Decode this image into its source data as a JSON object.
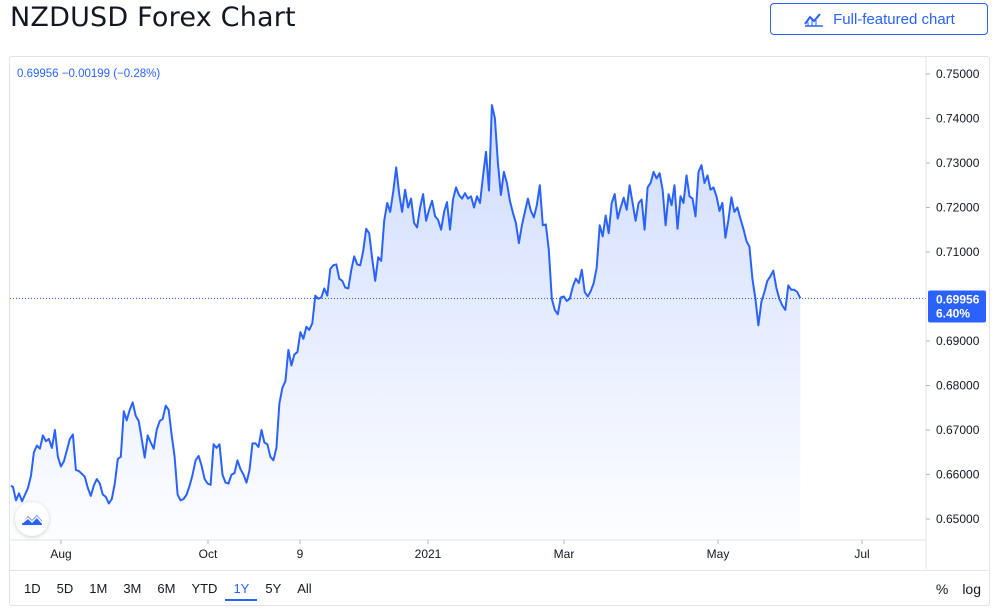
{
  "header": {
    "title": "NZDUSD Forex Chart",
    "full_featured_label": "Full-featured chart"
  },
  "legend": {
    "text": "0.69956  −0.00199 (−0.28%)"
  },
  "price_label": {
    "value": "0.69956",
    "change": "6.40%"
  },
  "toolbar": {
    "ranges": [
      "1D",
      "5D",
      "1M",
      "3M",
      "6M",
      "YTD",
      "1Y",
      "5Y",
      "All"
    ],
    "active_range": "1Y",
    "percent_label": "%",
    "log_label": "log"
  },
  "colors": {
    "line": "#2962ff",
    "accent": "#2962ff",
    "label_bg": "#2962ff"
  },
  "chart_data": {
    "type": "area",
    "series": [
      {
        "name": "NZDUSD",
        "points": [
          [
            1,
            0.6575
          ],
          [
            3,
            0.6572
          ],
          [
            6,
            0.6542
          ],
          [
            9,
            0.6558
          ],
          [
            12,
            0.654
          ],
          [
            15,
            0.6555
          ],
          [
            18,
            0.657
          ],
          [
            21,
            0.6598
          ],
          [
            24,
            0.665
          ],
          [
            27,
            0.6665
          ],
          [
            30,
            0.6658
          ],
          [
            33,
            0.6688
          ],
          [
            36,
            0.6675
          ],
          [
            39,
            0.668
          ],
          [
            42,
            0.666
          ],
          [
            45,
            0.67
          ],
          [
            48,
            0.664
          ],
          [
            51,
            0.6618
          ],
          [
            54,
            0.663
          ],
          [
            57,
            0.6655
          ],
          [
            60,
            0.668
          ],
          [
            63,
            0.669
          ],
          [
            66,
            0.661
          ],
          [
            69,
            0.6608
          ],
          [
            72,
            0.6602
          ],
          [
            75,
            0.6595
          ],
          [
            78,
            0.657
          ],
          [
            81,
            0.6552
          ],
          [
            84,
            0.6575
          ],
          [
            87,
            0.659
          ],
          [
            90,
            0.658
          ],
          [
            93,
            0.6555
          ],
          [
            96,
            0.655
          ],
          [
            99,
            0.6535
          ],
          [
            102,
            0.6545
          ],
          [
            105,
            0.658
          ],
          [
            108,
            0.6635
          ],
          [
            111,
            0.664
          ],
          [
            114,
            0.6742
          ],
          [
            117,
            0.6722
          ],
          [
            120,
            0.6745
          ],
          [
            123,
            0.6762
          ],
          [
            126,
            0.6732
          ],
          [
            129,
            0.672
          ],
          [
            132,
            0.668
          ],
          [
            135,
            0.6638
          ],
          [
            138,
            0.6688
          ],
          [
            141,
            0.6672
          ],
          [
            144,
            0.6658
          ],
          [
            147,
            0.67
          ],
          [
            150,
            0.672
          ],
          [
            153,
            0.6725
          ],
          [
            156,
            0.6755
          ],
          [
            159,
            0.6745
          ],
          [
            162,
            0.669
          ],
          [
            165,
            0.664
          ],
          [
            168,
            0.6555
          ],
          [
            171,
            0.6542
          ],
          [
            174,
            0.6545
          ],
          [
            177,
            0.6555
          ],
          [
            180,
            0.6575
          ],
          [
            183,
            0.66
          ],
          [
            186,
            0.6632
          ],
          [
            189,
            0.6642
          ],
          [
            192,
            0.662
          ],
          [
            195,
            0.659
          ],
          [
            198,
            0.658
          ],
          [
            201,
            0.6577
          ],
          [
            204,
            0.6668
          ],
          [
            207,
            0.666
          ],
          [
            210,
            0.6668
          ],
          [
            213,
            0.66
          ],
          [
            216,
            0.6582
          ],
          [
            219,
            0.658
          ],
          [
            222,
            0.66
          ],
          [
            225,
            0.6603
          ],
          [
            228,
            0.6632
          ],
          [
            231,
            0.6612
          ],
          [
            234,
            0.66
          ],
          [
            237,
            0.6582
          ],
          [
            240,
            0.661
          ],
          [
            243,
            0.667
          ],
          [
            246,
            0.667
          ],
          [
            249,
            0.6662
          ],
          [
            252,
            0.67
          ],
          [
            255,
            0.6672
          ],
          [
            258,
            0.6668
          ],
          [
            261,
            0.664
          ],
          [
            264,
            0.6632
          ],
          [
            267,
            0.666
          ],
          [
            270,
            0.676
          ],
          [
            273,
            0.6795
          ],
          [
            276,
            0.681
          ],
          [
            279,
            0.688
          ],
          [
            282,
            0.6845
          ],
          [
            285,
            0.687
          ],
          [
            288,
            0.6875
          ],
          [
            291,
            0.692
          ],
          [
            294,
            0.6905
          ],
          [
            297,
            0.6932
          ],
          [
            300,
            0.6925
          ],
          [
            303,
            0.694
          ],
          [
            306,
            0.7002
          ],
          [
            309,
            0.6995
          ],
          [
            312,
            0.6998
          ],
          [
            315,
            0.7018
          ],
          [
            318,
            0.7002
          ],
          [
            321,
            0.7062
          ],
          [
            324,
            0.707
          ],
          [
            327,
            0.7072
          ],
          [
            330,
            0.704
          ],
          [
            333,
            0.7035
          ],
          [
            336,
            0.702
          ],
          [
            339,
            0.7018
          ],
          [
            342,
            0.706
          ],
          [
            345,
            0.709
          ],
          [
            348,
            0.7072
          ],
          [
            351,
            0.707
          ],
          [
            354,
            0.7102
          ],
          [
            357,
            0.7152
          ],
          [
            360,
            0.7142
          ],
          [
            363,
            0.7085
          ],
          [
            366,
            0.7035
          ],
          [
            369,
            0.7088
          ],
          [
            372,
            0.708
          ],
          [
            375,
            0.717
          ],
          [
            378,
            0.721
          ],
          [
            381,
            0.719
          ],
          [
            384,
            0.7235
          ],
          [
            387,
            0.729
          ],
          [
            390,
            0.723
          ],
          [
            393,
            0.719
          ],
          [
            396,
            0.724
          ],
          [
            399,
            0.72
          ],
          [
            402,
            0.722
          ],
          [
            405,
            0.7165
          ],
          [
            408,
            0.7155
          ],
          [
            411,
            0.72
          ],
          [
            414,
            0.723
          ],
          [
            417,
            0.717
          ],
          [
            420,
            0.7195
          ],
          [
            423,
            0.7215
          ],
          [
            426,
            0.718
          ],
          [
            429,
            0.7172
          ],
          [
            432,
            0.715
          ],
          [
            435,
            0.719
          ],
          [
            438,
            0.7212
          ],
          [
            441,
            0.715
          ],
          [
            444,
            0.7218
          ],
          [
            447,
            0.7245
          ],
          [
            450,
            0.7228
          ],
          [
            453,
            0.722
          ],
          [
            456,
            0.7232
          ],
          [
            459,
            0.722
          ],
          [
            462,
            0.7225
          ],
          [
            465,
            0.72
          ],
          [
            468,
            0.7225
          ],
          [
            471,
            0.721
          ],
          [
            474,
            0.727
          ],
          [
            477,
            0.7325
          ],
          [
            480,
            0.7238
          ],
          [
            483,
            0.743
          ],
          [
            486,
            0.74
          ],
          [
            489,
            0.73
          ],
          [
            492,
            0.7228
          ],
          [
            495,
            0.728
          ],
          [
            498,
            0.7255
          ],
          [
            501,
            0.7215
          ],
          [
            504,
            0.7188
          ],
          [
            507,
            0.7165
          ],
          [
            510,
            0.712
          ],
          [
            513,
            0.716
          ],
          [
            516,
            0.719
          ],
          [
            519,
            0.722
          ],
          [
            522,
            0.7192
          ],
          [
            525,
            0.7178
          ],
          [
            528,
            0.7205
          ],
          [
            531,
            0.725
          ],
          [
            534,
            0.716
          ],
          [
            537,
            0.7162
          ],
          [
            540,
            0.7105
          ],
          [
            543,
            0.6995
          ],
          [
            546,
            0.697
          ],
          [
            549,
            0.696
          ],
          [
            552,
            0.6998
          ],
          [
            555,
            0.7
          ],
          [
            558,
            0.699
          ],
          [
            561,
            0.6995
          ],
          [
            564,
            0.7022
          ],
          [
            567,
            0.704
          ],
          [
            570,
            0.703
          ],
          [
            573,
            0.706
          ],
          [
            576,
            0.701
          ],
          [
            579,
            0.7
          ],
          [
            582,
            0.7012
          ],
          [
            585,
            0.703
          ],
          [
            588,
            0.7065
          ],
          [
            591,
            0.716
          ],
          [
            594,
            0.7135
          ],
          [
            597,
            0.7182
          ],
          [
            600,
            0.7142
          ],
          [
            603,
            0.721
          ],
          [
            606,
            0.723
          ],
          [
            609,
            0.7175
          ],
          [
            612,
            0.72
          ],
          [
            615,
            0.7222
          ],
          [
            618,
            0.7195
          ],
          [
            621,
            0.725
          ],
          [
            624,
            0.721
          ],
          [
            627,
            0.717
          ],
          [
            630,
            0.721
          ],
          [
            633,
            0.7218
          ],
          [
            636,
            0.715
          ],
          [
            639,
            0.7245
          ],
          [
            642,
            0.7255
          ],
          [
            645,
            0.728
          ],
          [
            648,
            0.7265
          ],
          [
            651,
            0.7277
          ],
          [
            654,
            0.724
          ],
          [
            657,
            0.716
          ],
          [
            660,
            0.723
          ],
          [
            663,
            0.7205
          ],
          [
            666,
            0.725
          ],
          [
            669,
            0.7152
          ],
          [
            672,
            0.7225
          ],
          [
            675,
            0.721
          ],
          [
            678,
            0.7272
          ],
          [
            681,
            0.7225
          ],
          [
            684,
            0.722
          ],
          [
            687,
            0.718
          ],
          [
            690,
            0.728
          ],
          [
            693,
            0.7295
          ],
          [
            696,
            0.7255
          ],
          [
            699,
            0.7272
          ],
          [
            702,
            0.724
          ],
          [
            705,
            0.7245
          ],
          [
            708,
            0.7225
          ],
          [
            711,
            0.7192
          ],
          [
            714,
            0.721
          ],
          [
            717,
            0.7132
          ],
          [
            720,
            0.7172
          ],
          [
            723,
            0.7223
          ],
          [
            726,
            0.719
          ],
          [
            729,
            0.72
          ],
          [
            732,
            0.7175
          ],
          [
            735,
            0.7152
          ],
          [
            738,
            0.7125
          ],
          [
            741,
            0.7112
          ],
          [
            744,
            0.704
          ],
          [
            747,
            0.6995
          ],
          [
            750,
            0.6935
          ],
          [
            753,
            0.6988
          ],
          [
            756,
            0.701
          ],
          [
            759,
            0.7035
          ],
          [
            762,
            0.7045
          ],
          [
            765,
            0.7058
          ],
          [
            768,
            0.702
          ],
          [
            771,
            0.6995
          ],
          [
            774,
            0.698
          ],
          [
            777,
            0.697
          ],
          [
            780,
            0.7025
          ],
          [
            783,
            0.7015
          ],
          [
            786,
            0.7015
          ],
          [
            789,
            0.701
          ],
          [
            792,
            0.6996
          ]
        ]
      }
    ],
    "x_ticks": [
      "Aug",
      "Oct",
      "9",
      "2021",
      "Mar",
      "May",
      "Jul"
    ],
    "x_tick_pos": [
      61,
      208,
      300,
      428,
      564,
      718,
      862
    ],
    "y_ticks": [
      "0.75000",
      "0.74000",
      "0.73000",
      "0.72000",
      "0.71000",
      "0.69000",
      "0.68000",
      "0.67000",
      "0.66000",
      "0.65000"
    ],
    "y_tick_values": [
      0.75,
      0.74,
      0.73,
      0.72,
      0.71,
      0.69,
      0.68,
      0.67,
      0.66,
      0.65
    ],
    "ylim": [
      0.6453,
      0.7538
    ],
    "xlim": [
      0,
      918
    ],
    "last_value": 0.69956,
    "grid": false
  }
}
